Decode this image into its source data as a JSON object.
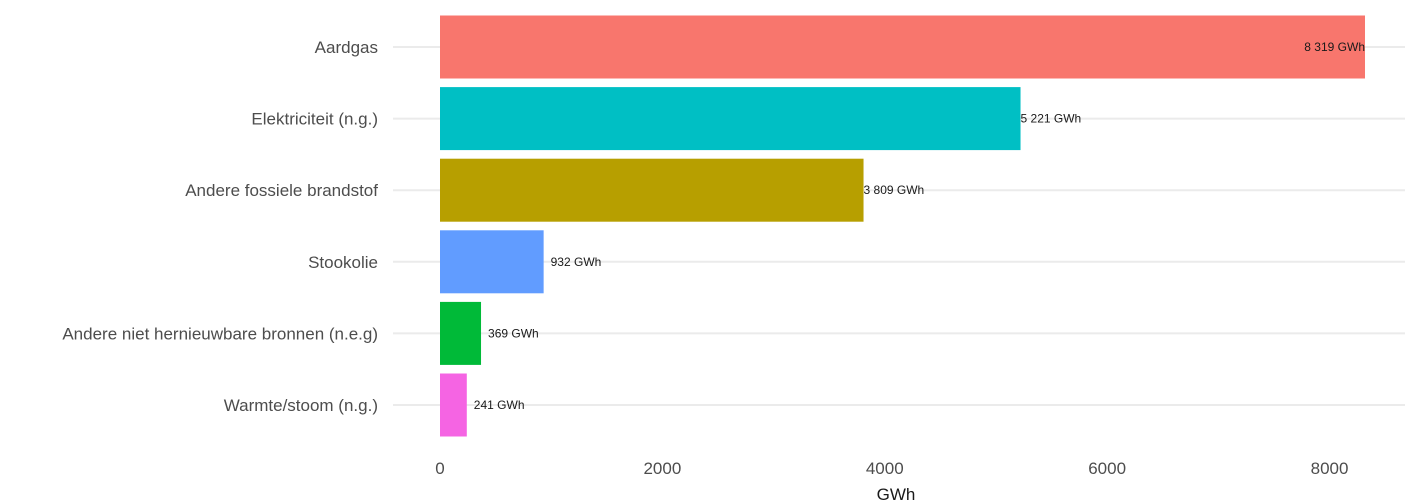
{
  "chart_data": {
    "type": "bar",
    "orientation": "horizontal",
    "categories": [
      "Aardgas",
      "Elektriciteit (n.g.)",
      "Andere fossiele brandstof",
      "Stookolie",
      "Andere niet hernieuwbare bronnen (n.e.g)",
      "Warmte/stoom (n.g.)"
    ],
    "values": [
      8319,
      5221,
      3809,
      932,
      369,
      241
    ],
    "data_labels": [
      "8 319 GWh",
      "5 221 GWh",
      "3 809 GWh",
      "932 GWh",
      "369 GWh",
      "241 GWh"
    ],
    "colors": [
      "#F8766D",
      "#00BFC4",
      "#B79F00",
      "#619CFF",
      "#00BA38",
      "#F564E3"
    ],
    "xlabel": "GWh",
    "x_ticks": [
      0,
      2000,
      4000,
      6000,
      8000
    ],
    "x_tick_labels": [
      "0",
      "2000",
      "4000",
      "6000",
      "8000"
    ],
    "xlim": [
      0,
      8319
    ],
    "grid": true,
    "legend": "none"
  }
}
